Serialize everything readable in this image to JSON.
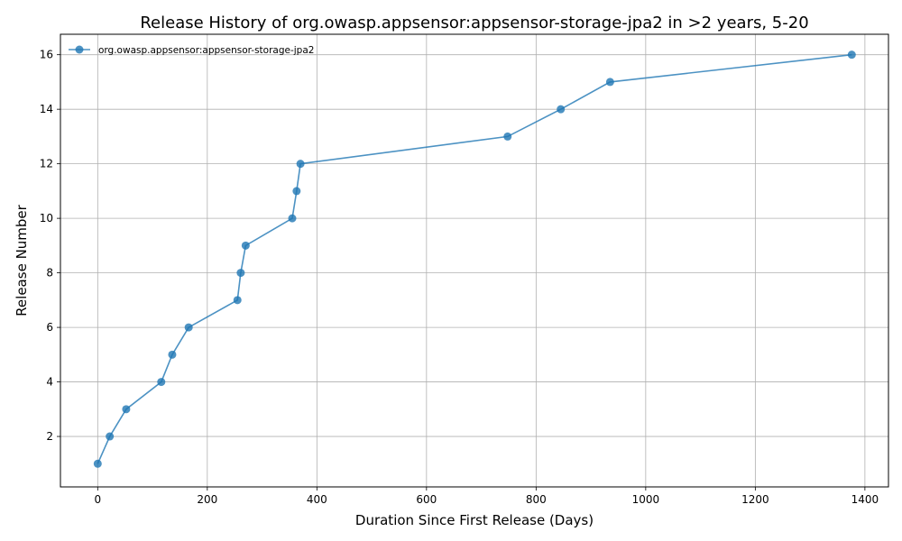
{
  "chart_data": {
    "type": "line",
    "title": "Release History of org.owasp.appsensor:appsensor-storage-jpa2 in >2 years, 5-20",
    "xlabel": "Duration Since First Release (Days)",
    "ylabel": "Release Number",
    "xlim": [
      -68,
      1443
    ],
    "ylim": [
      0.15,
      16.75
    ],
    "xticks": [
      0,
      200,
      400,
      600,
      800,
      1000,
      1200,
      1400
    ],
    "yticks": [
      2,
      4,
      6,
      8,
      10,
      12,
      14,
      16
    ],
    "xtick_labels": [
      "0",
      "200",
      "400",
      "600",
      "800",
      "1000",
      "1200",
      "1400"
    ],
    "ytick_labels": [
      "2",
      "4",
      "6",
      "8",
      "10",
      "12",
      "14",
      "16"
    ],
    "grid": true,
    "legend_position": "top-left",
    "series": [
      {
        "name": "org.owasp.appsensor:appsensor-storage-jpa2",
        "color": "#1f77b4",
        "marker": "circle",
        "x": [
          0,
          22,
          52,
          116,
          136,
          166,
          255,
          261,
          270,
          355,
          363,
          370,
          748,
          845,
          935,
          1376
        ],
        "y": [
          1,
          2,
          3,
          4,
          5,
          6,
          7,
          8,
          9,
          10,
          11,
          12,
          13,
          14,
          15,
          16
        ]
      }
    ]
  }
}
